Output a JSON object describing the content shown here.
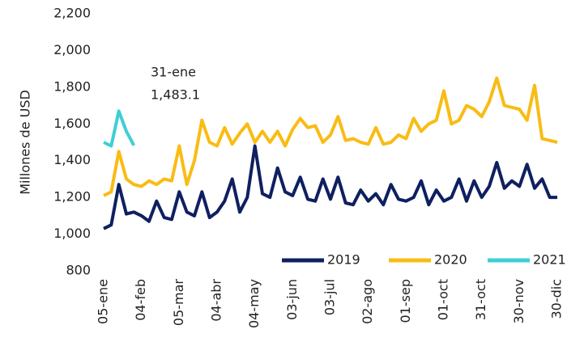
{
  "chart_data": {
    "type": "line",
    "y_label": "Millones de USD",
    "annotation": [
      "31-ene",
      "1,483.1"
    ],
    "categories": [
      "05-ene",
      null,
      null,
      null,
      null,
      "04-feb",
      null,
      null,
      null,
      null,
      "05-mar",
      null,
      null,
      null,
      null,
      "04-abr",
      null,
      null,
      null,
      null,
      "04-may",
      null,
      null,
      null,
      null,
      "03-jun",
      null,
      null,
      null,
      null,
      "03-jul",
      null,
      null,
      null,
      null,
      "02-ago",
      null,
      null,
      null,
      null,
      "01-sep",
      null,
      null,
      null,
      null,
      "01-oct",
      null,
      null,
      null,
      null,
      "31-oct",
      null,
      null,
      null,
      null,
      "30-nov",
      null,
      null,
      null,
      null,
      "30-dic"
    ],
    "series": [
      {
        "name": "2019",
        "color": "#0f2060",
        "values": [
          1030,
          1050,
          1270,
          1110,
          1120,
          1100,
          1070,
          1180,
          1090,
          1080,
          1230,
          1120,
          1100,
          1230,
          1090,
          1120,
          1180,
          1300,
          1120,
          1200,
          1480,
          1220,
          1200,
          1360,
          1230,
          1210,
          1310,
          1190,
          1180,
          1300,
          1190,
          1310,
          1170,
          1160,
          1240,
          1180,
          1220,
          1160,
          1270,
          1190,
          1180,
          1200,
          1290,
          1160,
          1240,
          1180,
          1200,
          1300,
          1180,
          1290,
          1200,
          1260,
          1390,
          1250,
          1290,
          1260,
          1380,
          1250,
          1300,
          1200,
          1200
        ]
      },
      {
        "name": "2020",
        "color": "#f9bc15",
        "values": [
          1210,
          1230,
          1450,
          1300,
          1270,
          1260,
          1290,
          1270,
          1300,
          1290,
          1480,
          1270,
          1400,
          1620,
          1500,
          1480,
          1580,
          1490,
          1550,
          1600,
          1500,
          1560,
          1500,
          1560,
          1480,
          1570,
          1630,
          1580,
          1590,
          1500,
          1540,
          1640,
          1510,
          1520,
          1500,
          1490,
          1580,
          1490,
          1500,
          1540,
          1520,
          1630,
          1560,
          1600,
          1620,
          1780,
          1600,
          1620,
          1700,
          1680,
          1640,
          1720,
          1850,
          1700,
          1690,
          1680,
          1620,
          1810,
          1520,
          1510,
          1500
        ]
      },
      {
        "name": "2021",
        "color": "#3ecfd6",
        "values": [
          1500,
          1480,
          1670,
          1560,
          1483.1,
          null,
          null,
          null,
          null,
          null,
          null,
          null,
          null,
          null,
          null,
          null,
          null,
          null,
          null,
          null,
          null,
          null,
          null,
          null,
          null,
          null,
          null,
          null,
          null,
          null,
          null,
          null,
          null,
          null,
          null,
          null,
          null,
          null,
          null,
          null,
          null,
          null,
          null,
          null,
          null,
          null,
          null,
          null,
          null,
          null,
          null,
          null,
          null,
          null,
          null,
          null,
          null,
          null,
          null,
          null,
          null
        ]
      }
    ],
    "ylim": [
      800,
      2200
    ],
    "yticks": [
      800,
      {
        "value": 1000,
        "label": "1,000"
      },
      {
        "value": 1200,
        "label": "1,200"
      },
      {
        "value": 1400,
        "label": "1,400"
      },
      {
        "value": 1600,
        "label": "1,600"
      },
      {
        "value": 1800,
        "label": "1,800"
      },
      {
        "value": 2000,
        "label": "2,000"
      },
      {
        "value": 2200,
        "label": "2,200"
      }
    ],
    "legend": "bottom-right"
  }
}
